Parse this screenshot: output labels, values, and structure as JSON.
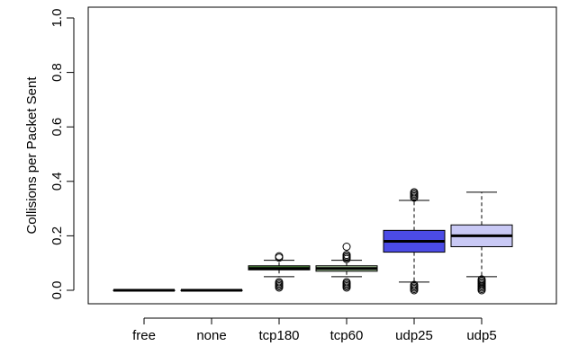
{
  "chart_data": {
    "type": "boxplot",
    "title": "",
    "xlabel": "",
    "ylabel": "Collisions per Packet Sent",
    "ylim": [
      0.0,
      1.0
    ],
    "yticks": [
      0.0,
      0.2,
      0.4,
      0.6,
      0.8,
      1.0
    ],
    "ytick_labels": [
      "0.0",
      "0.2",
      "0.4",
      "0.6",
      "0.8",
      "1.0"
    ],
    "grid": false,
    "legend": "none",
    "categories": [
      "free",
      "none",
      "tcp180",
      "tcp60",
      "udp25",
      "udp5"
    ],
    "boxes": [
      {
        "category": "free",
        "min": 0.0,
        "q1": 0.0,
        "median": 0.0,
        "q3": 0.0,
        "max": 0.0,
        "outliers": [],
        "color": "#ffffff"
      },
      {
        "category": "none",
        "min": 0.0,
        "q1": 0.0,
        "median": 0.0,
        "q3": 0.0,
        "max": 0.0,
        "outliers": [],
        "color": "#ffffff"
      },
      {
        "category": "tcp180",
        "min": 0.05,
        "q1": 0.075,
        "median": 0.08,
        "q3": 0.09,
        "max": 0.11,
        "outliers": [
          0.01,
          0.015,
          0.02,
          0.025,
          0.03,
          0.12,
          0.125
        ],
        "color": "#4f8a3c"
      },
      {
        "category": "tcp60",
        "min": 0.05,
        "q1": 0.07,
        "median": 0.08,
        "q3": 0.09,
        "max": 0.11,
        "outliers": [
          0.01,
          0.015,
          0.02,
          0.025,
          0.03,
          0.115,
          0.12,
          0.125,
          0.13,
          0.16
        ],
        "color": "#a7c99a"
      },
      {
        "category": "udp25",
        "min": 0.03,
        "q1": 0.14,
        "median": 0.18,
        "q3": 0.22,
        "max": 0.33,
        "outliers": [
          0.0,
          0.005,
          0.01,
          0.015,
          0.02,
          0.34,
          0.345,
          0.35,
          0.355,
          0.36
        ],
        "color": "#4b4be6"
      },
      {
        "category": "udp5",
        "min": 0.05,
        "q1": 0.16,
        "median": 0.2,
        "q3": 0.24,
        "max": 0.36,
        "outliers": [
          0.0,
          0.005,
          0.01,
          0.015,
          0.02,
          0.025,
          0.03,
          0.035,
          0.04
        ],
        "color": "#c9c9f5"
      }
    ]
  }
}
